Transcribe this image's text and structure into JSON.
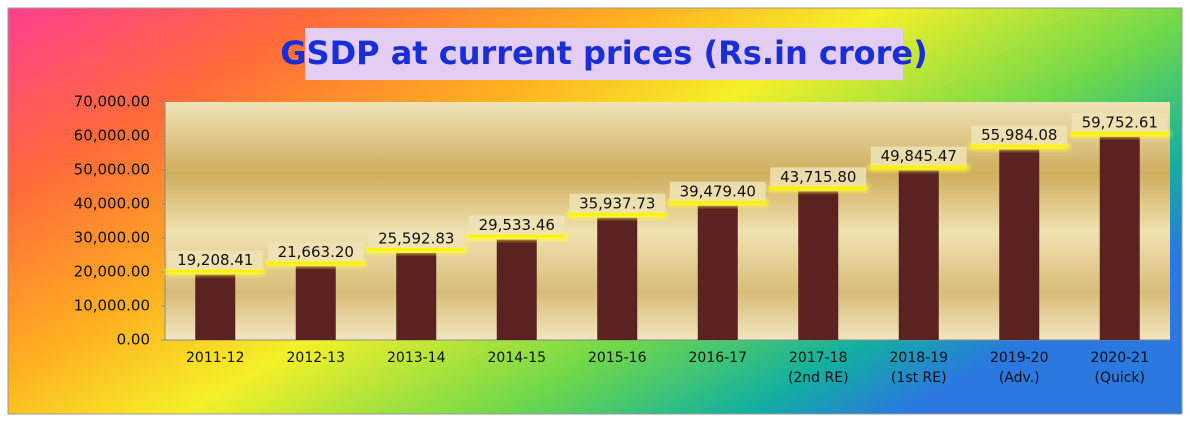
{
  "chart_data": {
    "type": "bar",
    "title": "GSDP at current prices (Rs.in crore)",
    "categories": [
      "2011-12",
      "2012-13",
      "2013-14",
      "2014-15",
      "2015-16",
      "2016-17",
      "2017-18 (2nd RE)",
      "2018-19 (1st RE)",
      "2019-20 (Adv.)",
      "2020-21 (Quick)"
    ],
    "values": [
      19208.41,
      21663.2,
      25592.83,
      29533.46,
      35937.73,
      39479.4,
      43715.8,
      49845.47,
      55984.08,
      59752.61
    ],
    "value_labels": [
      "19,208.41",
      "21,663.20",
      "25,592.83",
      "29,533.46",
      "35,937.73",
      "39,479.40",
      "43,715.80",
      "49,845.47",
      "55,984.08",
      "59,752.61"
    ],
    "color": "#5b2222",
    "ylim": [
      0,
      70000
    ],
    "yticks": [
      {
        "value": 0,
        "label": "0.00"
      },
      {
        "value": 10000,
        "label": "10,000.00"
      },
      {
        "value": 20000,
        "label": "20,000.00"
      },
      {
        "value": 30000,
        "label": "30,000.00"
      },
      {
        "value": 40000,
        "label": "40,000.00"
      },
      {
        "value": 50000,
        "label": "50,000.00"
      },
      {
        "value": 60000,
        "label": "60,000.00"
      },
      {
        "value": 70000,
        "label": "70,000.00"
      }
    ],
    "grid": false
  }
}
